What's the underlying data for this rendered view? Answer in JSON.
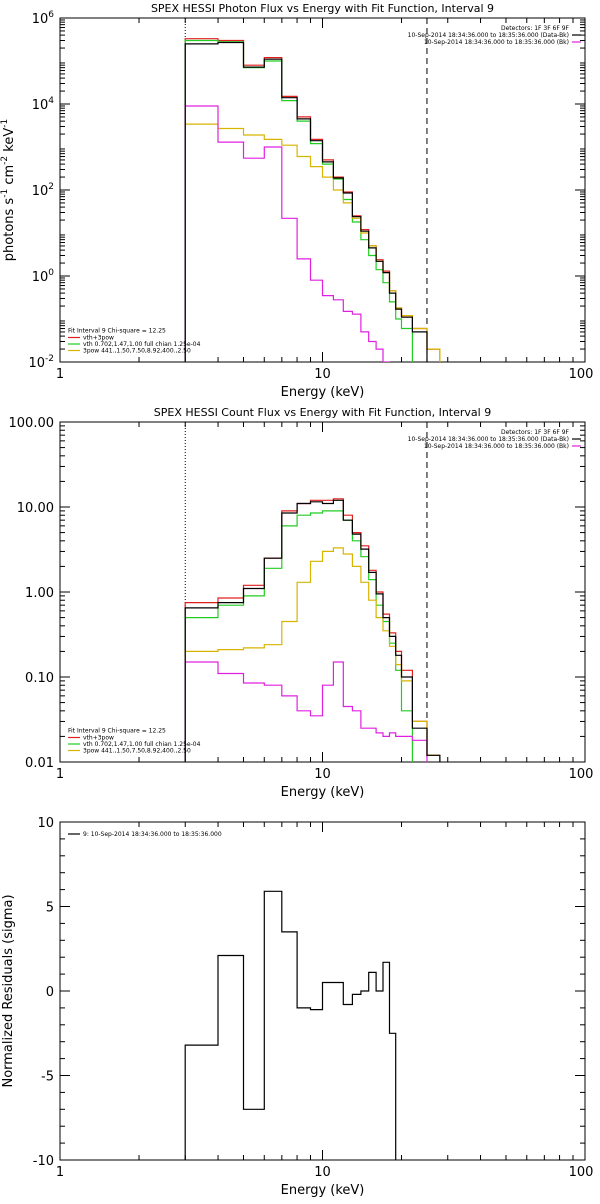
{
  "chart_data": [
    {
      "type": "line",
      "step": true,
      "title": "SPEX HESSI Photon Flux vs Energy with Fit Function, Interval 9",
      "xlabel": "Energy (keV)",
      "ylabel_parts": {
        "base": "photons s",
        "e1": "-1",
        "mid": " cm",
        "e2": "-2",
        "mid2": " keV",
        "e3": "-1"
      },
      "xscale": "log",
      "yscale": "log",
      "xlim": [
        1,
        100
      ],
      "ylim": [
        0.01,
        1000000
      ],
      "xticks": [
        {
          "v": 1,
          "label": "1"
        },
        {
          "v": 10,
          "label": "10"
        },
        {
          "v": 100,
          "label": "100"
        }
      ],
      "yticks": [
        {
          "v": 0.01,
          "base": "10",
          "exp": "-2"
        },
        {
          "v": 1,
          "base": "10",
          "exp": "0"
        },
        {
          "v": 100,
          "base": "10",
          "exp": "2"
        },
        {
          "v": 10000,
          "base": "10",
          "exp": "4"
        },
        {
          "v": 1000000,
          "base": "10",
          "exp": "6"
        }
      ],
      "bin_edges": [
        3,
        4,
        5,
        6,
        7,
        8,
        9,
        10,
        11,
        12,
        13,
        14,
        15,
        16,
        17,
        18,
        19,
        20,
        22,
        25,
        28,
        31
      ],
      "series": [
        {
          "name": "vth+3pow",
          "color": "#e0201e",
          "values": [
            330000,
            300000,
            80000,
            120000,
            15000,
            5000,
            1500,
            500,
            200,
            90,
            25,
            12,
            5,
            2.4,
            1.3,
            0.45,
            0.18,
            0.12,
            0.06,
            0.02,
            0.008
          ]
        },
        {
          "name": "vth 0.702,1.47,1.00  full chian 1.25e-04",
          "color": "#22cc22",
          "values": [
            300000,
            280000,
            70000,
            100000,
            12000,
            4000,
            1200,
            400,
            180,
            60,
            18,
            7,
            3,
            1.4,
            0.7,
            0.25,
            0.1,
            0.06,
            0.008
          ]
        },
        {
          "name": "3pow 441.,1.50,7.50,8.92,400.,2.50",
          "color": "#d8b400",
          "values": [
            3400,
            2700,
            1900,
            1500,
            1100,
            600,
            350,
            200,
            100,
            50,
            22,
            10,
            5,
            2.2,
            1.2,
            0.45,
            0.18,
            0.12,
            0.06,
            0.02,
            0.008
          ]
        },
        {
          "name": "10-Sep-2014 18:34:36.000 to 18:35:36.000 (Bk)",
          "color": "#e020e0",
          "values": [
            9000,
            1300,
            550,
            1000,
            22,
            2.5,
            0.8,
            0.35,
            0.28,
            0.15,
            0.13,
            0.05,
            0.03,
            0.02,
            0.01
          ]
        },
        {
          "name": "data",
          "color": "#000000",
          "values": [
            250000,
            270000,
            72000,
            110000,
            14000,
            4500,
            1400,
            450,
            190,
            85,
            24,
            11,
            4.5,
            2.2,
            1.2,
            0.4,
            0.17,
            0.11,
            0.05
          ]
        }
      ],
      "dashed_line_x": 25,
      "dotted_line_x": 3,
      "legend_right": {
        "header": "Detectors: 1F 3F 6F 9F",
        "entries": [
          {
            "text": "10-Sep-2014 18:34:36.000 to 18:35:36.000 (Data-Bk)",
            "color": "#000000"
          },
          {
            "text": "10-Sep-2014 18:34:36.000 to 18:35:36.000 (Bk)",
            "color": "#e020e0"
          }
        ]
      },
      "legend_left": {
        "header": "Fit Interval 9   Chi-square = 12.25",
        "entries": [
          {
            "text": "vth+3pow",
            "color": "#e0201e"
          },
          {
            "text": "vth 0.702,1.47,1.00  full chian 1.25e-04",
            "color": "#22cc22"
          },
          {
            "text": "3pow 441.,1.50,7.50,8.92,400.,2.50",
            "color": "#d8b400"
          }
        ]
      }
    },
    {
      "type": "line",
      "step": true,
      "title": "SPEX HESSI Count Flux vs Energy with Fit Function, Interval 9",
      "xlabel": "Energy (keV)",
      "xscale": "log",
      "yscale": "log",
      "xlim": [
        1,
        100
      ],
      "ylim": [
        0.01,
        100
      ],
      "xticks": [
        {
          "v": 1,
          "label": "1"
        },
        {
          "v": 10,
          "label": "10"
        },
        {
          "v": 100,
          "label": "100"
        }
      ],
      "yticks": [
        {
          "v": 0.01,
          "label": "0.01"
        },
        {
          "v": 0.1,
          "label": "0.10"
        },
        {
          "v": 1,
          "label": "1.00"
        },
        {
          "v": 10,
          "label": "10.00"
        },
        {
          "v": 100,
          "label": "100.00"
        }
      ],
      "bin_edges": [
        3,
        4,
        5,
        6,
        7,
        8,
        9,
        10,
        11,
        12,
        13,
        14,
        15,
        16,
        17,
        18,
        19,
        20,
        22,
        25,
        28,
        31
      ],
      "series": [
        {
          "name": "vth+3pow",
          "color": "#e0201e",
          "values": [
            0.75,
            0.85,
            1.2,
            2.5,
            9,
            11,
            12,
            12,
            12.5,
            8,
            5,
            3.5,
            1.8,
            1,
            0.55,
            0.33,
            0.2,
            0.12,
            0.03,
            0.012
          ]
        },
        {
          "name": "vth 0.702,1.47,1.00  full chian 1.25e-04",
          "color": "#22cc22",
          "values": [
            0.5,
            0.7,
            0.9,
            1.9,
            6,
            8,
            8.5,
            9,
            9,
            7,
            4,
            2.6,
            1.4,
            0.7,
            0.45,
            0.25,
            0.12,
            0.04,
            0.008
          ]
        },
        {
          "name": "3pow 441.,1.50,7.50,8.92,400.,2.50",
          "color": "#d8b400",
          "values": [
            0.2,
            0.21,
            0.22,
            0.24,
            0.45,
            1.3,
            2.3,
            3,
            3.3,
            2.8,
            2,
            1.3,
            0.8,
            0.5,
            0.35,
            0.23,
            0.14,
            0.09,
            0.03,
            0.012
          ]
        },
        {
          "name": "10-Sep-2014 18:34:36.000 to 18:35:36.000 (Bk)",
          "color": "#e020e0",
          "values": [
            0.15,
            0.11,
            0.085,
            0.08,
            0.06,
            0.04,
            0.035,
            0.08,
            0.15,
            0.045,
            0.04,
            0.025,
            0.025,
            0.022,
            0.02,
            0.022,
            0.02,
            0.02,
            0.018
          ]
        },
        {
          "name": "data",
          "color": "#000000",
          "values": [
            0.65,
            0.75,
            1.1,
            2.5,
            8.5,
            11,
            11.5,
            11,
            12,
            7,
            4.8,
            3.2,
            1.7,
            0.95,
            0.5,
            0.3,
            0.18,
            0.1,
            0.025,
            0.012
          ]
        }
      ],
      "dashed_line_x": 25,
      "dotted_line_x": 3,
      "legend_right": {
        "header": "Detectors: 1F 3F 6F 9F",
        "entries": [
          {
            "text": "10-Sep-2014 18:34:36.000 to 18:35:36.000 (Data-Bk)",
            "color": "#000000"
          },
          {
            "text": "10-Sep-2014 18:34:36.000 to 18:35:36.000 (Bk)",
            "color": "#e020e0"
          }
        ]
      },
      "legend_left": {
        "header": "Fit Interval 9   Chi-square = 12.25",
        "entries": [
          {
            "text": "vth+3pow",
            "color": "#e0201e"
          },
          {
            "text": "vth 0.702,1.47,1.00  full chian 1.25e-04",
            "color": "#22cc22"
          },
          {
            "text": "3pow 441.,1.50,7.50,8.92,400.,2.50",
            "color": "#d8b400"
          }
        ]
      }
    },
    {
      "type": "line",
      "step": true,
      "title": "",
      "xlabel": "Energy (keV)",
      "ylabel": "Normalized Residuals (sigma)",
      "xscale": "log",
      "yscale": "linear",
      "xlim": [
        1,
        100
      ],
      "ylim": [
        -10,
        10
      ],
      "xticks": [
        {
          "v": 1,
          "label": "1"
        },
        {
          "v": 10,
          "label": "10"
        },
        {
          "v": 100,
          "label": "100"
        }
      ],
      "yticks": [
        {
          "v": -10,
          "label": "-10"
        },
        {
          "v": -5,
          "label": "-5"
        },
        {
          "v": 0,
          "label": "0"
        },
        {
          "v": 5,
          "label": "5"
        },
        {
          "v": 10,
          "label": "10"
        }
      ],
      "bin_edges": [
        3,
        4,
        5,
        6,
        7,
        8,
        9,
        10,
        11,
        12,
        13,
        14,
        15,
        16,
        17,
        18,
        19,
        20,
        22,
        25
      ],
      "series": [
        {
          "name": "9: 10-Sep-2014 18:34:36.000 to 18:35:36.000",
          "color": "#000000",
          "values": [
            -3.2,
            2.1,
            -7,
            5.9,
            3.5,
            -1,
            -1.1,
            0.5,
            0.5,
            -0.8,
            -0.2,
            0,
            1.1,
            0,
            1.7,
            -2.5
          ]
        }
      ],
      "legend_left": {
        "header": "",
        "entries": [
          {
            "text": "9: 10-Sep-2014 18:34:36.000 to 18:35:36.000",
            "color": "#000000"
          }
        ]
      }
    }
  ]
}
